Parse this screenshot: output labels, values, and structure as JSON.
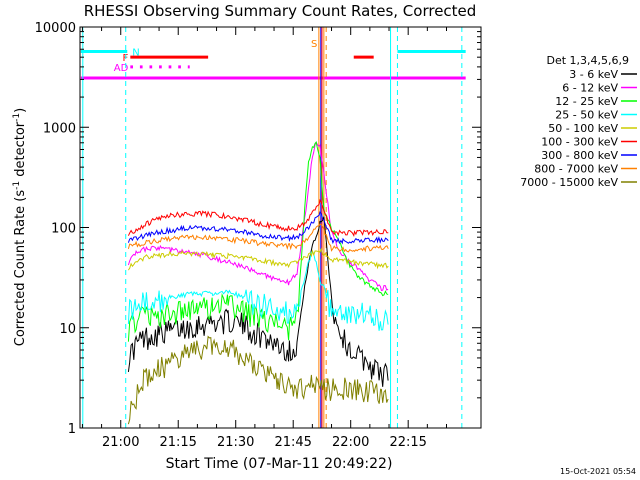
{
  "chart_data": {
    "type": "line",
    "title": "RHESSI Observing Summary Count Rates, Corrected",
    "xlabel": "Start Time (07-Mar-11 20:49:22)",
    "ylabel": "Corrected Count Rate (s⁻¹ detector⁻¹)",
    "ylabel_main": "Corrected Count Rate (s",
    "ylabel_sup1": "-1",
    "ylabel_mid": " detector",
    "ylabel_sup2": "-1",
    "ylabel_end": ")",
    "yscale": "log",
    "ylim": [
      1,
      10000
    ],
    "xlim_min": [
      1249.37,
      1354
    ],
    "x_ticks": [
      {
        "m": 1260,
        "label": "21:00"
      },
      {
        "m": 1275,
        "label": "21:15"
      },
      {
        "m": 1290,
        "label": "21:30"
      },
      {
        "m": 1305,
        "label": "21:45"
      },
      {
        "m": 1320,
        "label": "22:00"
      },
      {
        "m": 1335,
        "label": "22:15"
      }
    ],
    "y_ticks": [
      {
        "v": 1,
        "label": "1"
      },
      {
        "v": 10,
        "label": "10"
      },
      {
        "v": 100,
        "label": "100"
      },
      {
        "v": 1000,
        "label": "1000"
      },
      {
        "v": 10000,
        "label": "10000"
      }
    ],
    "legend_title": "Det 1,3,4,5,6,9",
    "legend_placement": "right",
    "footer_date": "15-Oct-2021 05:54",
    "series": [
      {
        "name": "3 - 6 keV",
        "color": "#000000",
        "points": [
          [
            1262,
            5
          ],
          [
            1264,
            7
          ],
          [
            1266,
            8
          ],
          [
            1268,
            8.5
          ],
          [
            1270,
            9
          ],
          [
            1273,
            9.5
          ],
          [
            1276,
            10
          ],
          [
            1280,
            11
          ],
          [
            1284,
            11.5
          ],
          [
            1288,
            12
          ],
          [
            1292,
            11
          ],
          [
            1295,
            9
          ],
          [
            1298,
            8
          ],
          [
            1301,
            7
          ],
          [
            1304,
            6
          ],
          [
            1306,
            7
          ],
          [
            1308,
            25
          ],
          [
            1309,
            45
          ],
          [
            1310,
            65
          ],
          [
            1311,
            80
          ],
          [
            1312,
            110
          ],
          [
            1313,
            130
          ],
          [
            1315,
            20
          ],
          [
            1316,
            12
          ],
          [
            1318,
            8
          ],
          [
            1320,
            6
          ],
          [
            1323,
            5
          ],
          [
            1326,
            4
          ],
          [
            1328,
            3.5
          ],
          [
            1330,
            3.5
          ]
        ]
      },
      {
        "name": "6 - 12 keV",
        "color": "#ff00ff",
        "points": [
          [
            1262,
            45
          ],
          [
            1264,
            55
          ],
          [
            1266,
            60
          ],
          [
            1268,
            62
          ],
          [
            1270,
            62
          ],
          [
            1273,
            60
          ],
          [
            1276,
            57
          ],
          [
            1280,
            55
          ],
          [
            1284,
            50
          ],
          [
            1288,
            45
          ],
          [
            1292,
            40
          ],
          [
            1295,
            36
          ],
          [
            1298,
            33
          ],
          [
            1301,
            30
          ],
          [
            1304,
            28
          ],
          [
            1306,
            35
          ],
          [
            1308,
            120
          ],
          [
            1309,
            250
          ],
          [
            1310,
            500
          ],
          [
            1311,
            700
          ],
          [
            1312,
            650
          ],
          [
            1313,
            350
          ],
          [
            1315,
            90
          ],
          [
            1317,
            60
          ],
          [
            1320,
            45
          ],
          [
            1323,
            35
          ],
          [
            1326,
            28
          ],
          [
            1328,
            25
          ],
          [
            1330,
            25
          ]
        ]
      },
      {
        "name": "12 - 25 keV",
        "color": "#00ff00",
        "points": [
          [
            1262,
            10
          ],
          [
            1264,
            12
          ],
          [
            1266,
            13
          ],
          [
            1268,
            13
          ],
          [
            1270,
            14
          ],
          [
            1273,
            14
          ],
          [
            1276,
            15
          ],
          [
            1280,
            16
          ],
          [
            1284,
            17
          ],
          [
            1288,
            17
          ],
          [
            1292,
            15
          ],
          [
            1295,
            13
          ],
          [
            1298,
            12
          ],
          [
            1301,
            11
          ],
          [
            1304,
            10
          ],
          [
            1306,
            12
          ],
          [
            1308,
            150
          ],
          [
            1309,
            450
          ],
          [
            1310,
            650
          ],
          [
            1311,
            700
          ],
          [
            1312,
            500
          ],
          [
            1313,
            150
          ],
          [
            1315,
            100
          ],
          [
            1317,
            70
          ],
          [
            1320,
            40
          ],
          [
            1323,
            30
          ],
          [
            1326,
            25
          ],
          [
            1328,
            22
          ],
          [
            1330,
            22
          ]
        ]
      },
      {
        "name": "25 - 50 keV",
        "color": "#00ffff",
        "points": [
          [
            1262,
            15
          ],
          [
            1264,
            17
          ],
          [
            1266,
            18
          ],
          [
            1268,
            19
          ],
          [
            1270,
            19
          ],
          [
            1273,
            20
          ],
          [
            1276,
            21
          ],
          [
            1280,
            22
          ],
          [
            1284,
            22
          ],
          [
            1288,
            23
          ],
          [
            1292,
            20
          ],
          [
            1295,
            18
          ],
          [
            1298,
            17
          ],
          [
            1301,
            16
          ],
          [
            1304,
            15
          ],
          [
            1306,
            16
          ],
          [
            1308,
            30
          ],
          [
            1309,
            45
          ],
          [
            1310,
            60
          ],
          [
            1311,
            45
          ],
          [
            1312,
            30
          ],
          [
            1313,
            25
          ],
          [
            1315,
            15
          ],
          [
            1317,
            14
          ],
          [
            1320,
            14
          ],
          [
            1323,
            14
          ],
          [
            1326,
            13
          ],
          [
            1328,
            12
          ],
          [
            1330,
            12
          ]
        ]
      },
      {
        "name": "50 - 100 keV",
        "color": "#cccc00",
        "points": [
          [
            1262,
            40
          ],
          [
            1264,
            46
          ],
          [
            1266,
            50
          ],
          [
            1268,
            52
          ],
          [
            1270,
            53
          ],
          [
            1273,
            54
          ],
          [
            1276,
            55
          ],
          [
            1280,
            55
          ],
          [
            1284,
            53
          ],
          [
            1288,
            52
          ],
          [
            1292,
            50
          ],
          [
            1295,
            48
          ],
          [
            1298,
            46
          ],
          [
            1301,
            44
          ],
          [
            1304,
            43
          ],
          [
            1306,
            45
          ],
          [
            1308,
            50
          ],
          [
            1310,
            55
          ],
          [
            1312,
            60
          ],
          [
            1313,
            55
          ],
          [
            1315,
            48
          ],
          [
            1318,
            46
          ],
          [
            1321,
            45
          ],
          [
            1324,
            44
          ],
          [
            1327,
            42
          ],
          [
            1330,
            42
          ]
        ]
      },
      {
        "name": "100 - 300 keV",
        "color": "#ff0000",
        "points": [
          [
            1262,
            88
          ],
          [
            1264,
            95
          ],
          [
            1266,
            105
          ],
          [
            1268,
            115
          ],
          [
            1270,
            125
          ],
          [
            1273,
            132
          ],
          [
            1276,
            135
          ],
          [
            1280,
            138
          ],
          [
            1284,
            135
          ],
          [
            1288,
            128
          ],
          [
            1292,
            120
          ],
          [
            1295,
            112
          ],
          [
            1298,
            106
          ],
          [
            1301,
            100
          ],
          [
            1304,
            98
          ],
          [
            1306,
            100
          ],
          [
            1308,
            110
          ],
          [
            1310,
            140
          ],
          [
            1312,
            180
          ],
          [
            1313,
            150
          ],
          [
            1315,
            90
          ],
          [
            1318,
            88
          ],
          [
            1321,
            88
          ],
          [
            1324,
            90
          ],
          [
            1327,
            90
          ],
          [
            1330,
            90
          ]
        ]
      },
      {
        "name": "300 - 800 keV",
        "color": "#0000ff",
        "points": [
          [
            1262,
            75
          ],
          [
            1264,
            78
          ],
          [
            1266,
            82
          ],
          [
            1268,
            86
          ],
          [
            1270,
            90
          ],
          [
            1273,
            94
          ],
          [
            1276,
            97
          ],
          [
            1280,
            99
          ],
          [
            1284,
            98
          ],
          [
            1288,
            95
          ],
          [
            1292,
            90
          ],
          [
            1295,
            86
          ],
          [
            1298,
            82
          ],
          [
            1301,
            80
          ],
          [
            1304,
            78
          ],
          [
            1306,
            80
          ],
          [
            1308,
            90
          ],
          [
            1310,
            110
          ],
          [
            1312,
            140
          ],
          [
            1313,
            120
          ],
          [
            1315,
            75
          ],
          [
            1318,
            74
          ],
          [
            1321,
            74
          ],
          [
            1324,
            75
          ],
          [
            1327,
            75
          ],
          [
            1330,
            75
          ]
        ]
      },
      {
        "name": "800 - 7000 keV",
        "color": "#ff8000",
        "points": [
          [
            1262,
            65
          ],
          [
            1264,
            68
          ],
          [
            1266,
            70
          ],
          [
            1268,
            72
          ],
          [
            1270,
            75
          ],
          [
            1273,
            77
          ],
          [
            1276,
            79
          ],
          [
            1280,
            80
          ],
          [
            1284,
            78
          ],
          [
            1288,
            76
          ],
          [
            1292,
            74
          ],
          [
            1295,
            71
          ],
          [
            1298,
            68
          ],
          [
            1301,
            66
          ],
          [
            1304,
            65
          ],
          [
            1306,
            66
          ],
          [
            1308,
            72
          ],
          [
            1310,
            90
          ],
          [
            1312,
            110
          ],
          [
            1313,
            95
          ],
          [
            1315,
            62
          ],
          [
            1318,
            60
          ],
          [
            1321,
            60
          ],
          [
            1324,
            62
          ],
          [
            1327,
            62
          ],
          [
            1330,
            62
          ]
        ]
      },
      {
        "name": "7000 - 15000 keV",
        "color": "#808000",
        "points": [
          [
            1262,
            1.5
          ],
          [
            1264,
            2
          ],
          [
            1266,
            3
          ],
          [
            1268,
            3.5
          ],
          [
            1270,
            4
          ],
          [
            1273,
            4.5
          ],
          [
            1276,
            5.5
          ],
          [
            1280,
            6.5
          ],
          [
            1284,
            7
          ],
          [
            1288,
            7
          ],
          [
            1292,
            5
          ],
          [
            1295,
            4
          ],
          [
            1298,
            3.5
          ],
          [
            1301,
            3
          ],
          [
            1304,
            2.5
          ],
          [
            1306,
            2.5
          ],
          [
            1308,
            2.5
          ],
          [
            1310,
            3
          ],
          [
            1312,
            3
          ],
          [
            1314,
            2.5
          ],
          [
            1316,
            2.5
          ],
          [
            1319,
            2.5
          ],
          [
            1322,
            2.5
          ],
          [
            1325,
            2.5
          ],
          [
            1328,
            2
          ],
          [
            1330,
            2
          ]
        ]
      }
    ],
    "flags": [
      {
        "label": "F",
        "color": "#ff0000",
        "level": 5000,
        "segments": [
          [
            1262.5,
            1282.8
          ],
          [
            1320.8,
            1326
          ]
        ]
      },
      {
        "label": "N",
        "color": "#00ffff",
        "level": 5700,
        "segments": [
          [
            1249.6,
            1261.7
          ],
          [
            1332.2,
            1350
          ]
        ]
      },
      {
        "label": "AD",
        "color": "#ff00ff",
        "level": 4000,
        "dashed": true,
        "segments": [
          [
            1262.5,
            1278
          ]
        ]
      },
      {
        "label": "",
        "color": "#ff00ff",
        "level": 3100,
        "segments": [
          [
            1249.6,
            1350
          ]
        ]
      },
      {
        "label": "S",
        "color": "#ff8000",
        "level": 6900,
        "segments": []
      }
    ],
    "vlines": [
      {
        "m": 1261.3,
        "color": "#00ffff",
        "dashed": true
      },
      {
        "m": 1332.2,
        "color": "#00ffff",
        "dashed": true
      },
      {
        "m": 1349.0,
        "color": "#00ffff",
        "dashed": true
      },
      {
        "m": 1250.1,
        "color": "#00ffff",
        "dashed": false
      },
      {
        "m": 1330.4,
        "color": "#00ffff",
        "dashed": false
      },
      {
        "m": 1311.7,
        "color": "#ff8000",
        "dashed": false
      },
      {
        "m": 1313.0,
        "color": "#ff8000",
        "dashed": false
      },
      {
        "m": 1312.2,
        "color": "#0000ff",
        "dashed": false
      },
      {
        "m": 1312.5,
        "color": "#ff0000",
        "dashed": false
      },
      {
        "m": 1313.6,
        "color": "#ff8000",
        "dashed": true
      }
    ]
  }
}
